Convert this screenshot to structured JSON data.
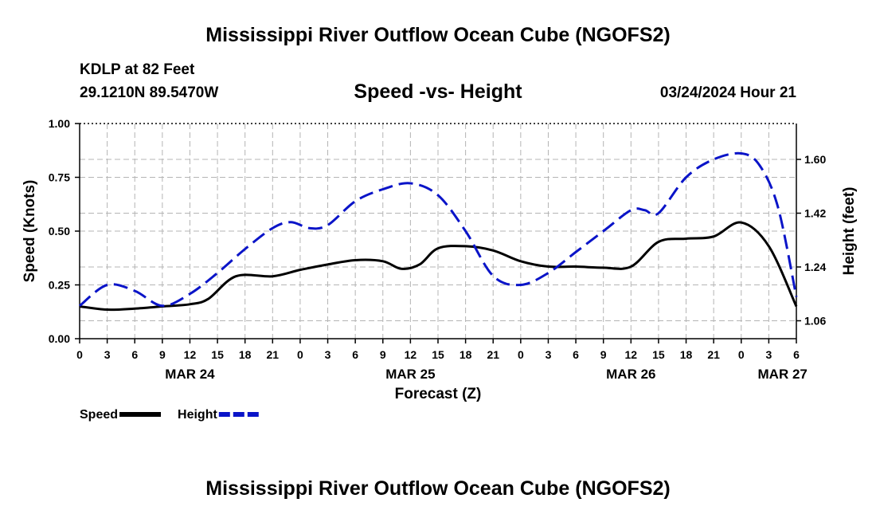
{
  "chart_data": {
    "type": "line",
    "title": "Mississippi River Outflow Ocean Cube (NGOFS2)",
    "footer_title": "Mississippi River Outflow Ocean Cube (NGOFS2)",
    "station": "KDLP at 82 Feet",
    "location": "29.1210N  89.5470W",
    "subtitle": "Speed -vs- Height",
    "forecast_time": "03/24/2024 Hour 21",
    "xlabel": "Forecast (Z)",
    "ylabel": "Speed (Knots)",
    "y2label": "Height (feet)",
    "xlim": [
      0,
      78
    ],
    "ylim": [
      0,
      1
    ],
    "y2lim": [
      1.0,
      1.72
    ],
    "x_ticks": [
      0,
      3,
      6,
      9,
      12,
      15,
      18,
      21,
      24,
      27,
      30,
      33,
      36,
      39,
      42,
      45,
      48,
      51,
      54,
      57,
      60,
      63,
      66,
      69,
      72,
      75,
      78
    ],
    "x_tick_labels": [
      "0",
      "3",
      "6",
      "9",
      "12",
      "15",
      "18",
      "21",
      "0",
      "3",
      "6",
      "9",
      "12",
      "15",
      "18",
      "21",
      "0",
      "3",
      "6",
      "9",
      "12",
      "15",
      "18",
      "21",
      "0",
      "3",
      "6"
    ],
    "date_labels": [
      {
        "x": 12,
        "label": "MAR 24"
      },
      {
        "x": 36,
        "label": "MAR 25"
      },
      {
        "x": 60,
        "label": "MAR 26"
      },
      {
        "x": 76.5,
        "label": "MAR 27"
      }
    ],
    "y_ticks": [
      0,
      0.25,
      0.5,
      0.75,
      1.0
    ],
    "y_tick_labels": [
      "0.00",
      "0.25",
      "0.50",
      "0.75",
      "1.00"
    ],
    "y2_ticks": [
      1.06,
      1.24,
      1.42,
      1.6
    ],
    "y2_tick_labels": [
      "1.06",
      "1.24",
      "1.42",
      "1.60"
    ],
    "grid": true,
    "series": [
      {
        "name": "Speed",
        "axis": "left",
        "color": "#000000",
        "style": "solid",
        "x": [
          0,
          3,
          6,
          9,
          12,
          14,
          17,
          21,
          24,
          27,
          30,
          33,
          35,
          37,
          39,
          42,
          45,
          48,
          51,
          54,
          57,
          60,
          63,
          66,
          69,
          72,
          75,
          78
        ],
        "values": [
          0.15,
          0.135,
          0.14,
          0.15,
          0.16,
          0.185,
          0.29,
          0.29,
          0.32,
          0.345,
          0.365,
          0.36,
          0.325,
          0.345,
          0.42,
          0.43,
          0.41,
          0.36,
          0.335,
          0.335,
          0.33,
          0.335,
          0.45,
          0.465,
          0.475,
          0.54,
          0.43,
          0.15
        ]
      },
      {
        "name": "Height",
        "axis": "right",
        "color": "#0a14c8",
        "style": "dashed",
        "x": [
          0,
          3,
          6,
          9,
          12,
          15,
          18,
          21,
          23,
          25,
          27,
          30,
          33,
          36,
          39,
          42,
          45,
          48,
          51,
          54,
          57,
          60,
          61.5,
          63,
          66,
          69,
          72,
          74,
          76,
          78
        ],
        "values": [
          1.11,
          1.18,
          1.16,
          1.11,
          1.15,
          1.22,
          1.3,
          1.37,
          1.39,
          1.37,
          1.38,
          1.46,
          1.5,
          1.52,
          1.48,
          1.36,
          1.21,
          1.18,
          1.22,
          1.29,
          1.36,
          1.43,
          1.43,
          1.42,
          1.54,
          1.6,
          1.62,
          1.58,
          1.44,
          1.14
        ]
      }
    ],
    "legend": [
      {
        "name": "Speed",
        "color": "#000000",
        "style": "solid"
      },
      {
        "name": "Height",
        "color": "#0a14c8",
        "style": "dashed"
      }
    ]
  }
}
